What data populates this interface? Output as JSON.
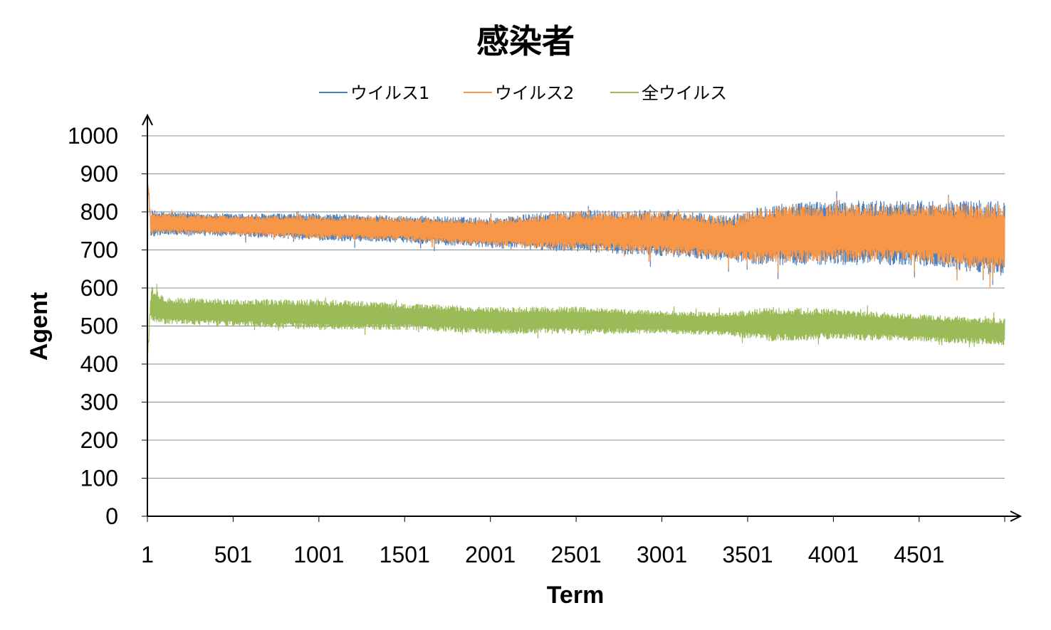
{
  "chart_data": {
    "type": "line",
    "title": "感染者",
    "xlabel": "Term",
    "ylabel": "Agent",
    "xlim": [
      1,
      5000
    ],
    "ylim": [
      0,
      1000
    ],
    "yticks": [
      0,
      100,
      200,
      300,
      400,
      500,
      600,
      700,
      800,
      900,
      1000
    ],
    "xtick_labels": [
      "1",
      "501",
      "1001",
      "1501",
      "2001",
      "2501",
      "3001",
      "3501",
      "4001",
      "4501"
    ],
    "xtick_values": [
      1,
      501,
      1001,
      1501,
      2001,
      2501,
      3001,
      3501,
      4001,
      4501
    ],
    "grid": "horizontal",
    "legend_position": "top",
    "series": [
      {
        "name": "ウイルス1",
        "color": "#4f81bd",
        "start_value": 900,
        "x": [
          20,
          100,
          500,
          1000,
          1500,
          2000,
          2500,
          3000,
          3400,
          3600,
          4000,
          4500,
          5000
        ],
        "mean": [
          770,
          770,
          765,
          760,
          755,
          745,
          750,
          745,
          730,
          740,
          745,
          745,
          730
        ],
        "amplitude": [
          35,
          30,
          30,
          35,
          35,
          40,
          55,
          60,
          60,
          80,
          85,
          85,
          100
        ]
      },
      {
        "name": "ウイルス2",
        "color": "#f79646",
        "start_value": 890,
        "x": [
          20,
          100,
          500,
          1000,
          1500,
          2000,
          2500,
          3000,
          3400,
          3600,
          4000,
          4500,
          5000
        ],
        "mean": [
          770,
          770,
          765,
          760,
          755,
          745,
          750,
          745,
          730,
          740,
          745,
          745,
          730
        ],
        "amplitude": [
          30,
          25,
          25,
          30,
          30,
          35,
          50,
          55,
          55,
          75,
          75,
          75,
          90
        ]
      },
      {
        "name": "全ウイルス",
        "color": "#9bbb59",
        "start_value": 410,
        "x": [
          20,
          100,
          500,
          1000,
          1500,
          2000,
          2500,
          3000,
          3400,
          3600,
          4000,
          4500,
          5000
        ],
        "mean": [
          560,
          540,
          535,
          530,
          525,
          515,
          515,
          510,
          505,
          505,
          505,
          495,
          485
        ],
        "amplitude": [
          45,
          35,
          35,
          40,
          35,
          35,
          35,
          30,
          30,
          45,
          40,
          35,
          35
        ]
      }
    ]
  }
}
